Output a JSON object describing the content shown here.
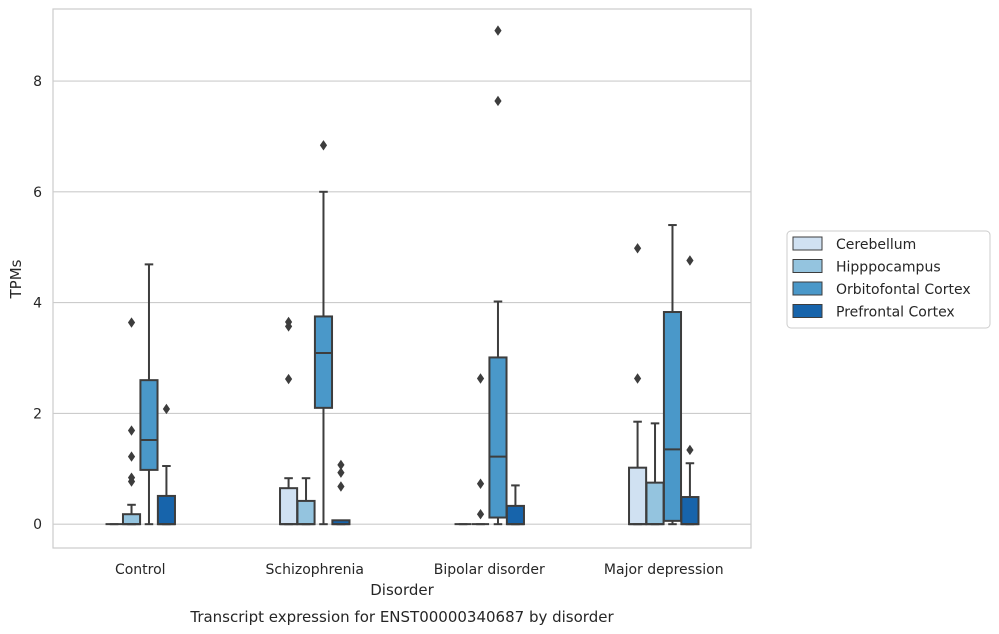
{
  "chart_data": {
    "type": "box",
    "title": "",
    "caption": "Transcript expression for ENST00000340687 by disorder",
    "xlabel": "Disorder",
    "ylabel": "TPMs",
    "ylim": [
      -0.43,
      9.3
    ],
    "yticks": [
      0,
      2,
      4,
      6,
      8
    ],
    "grid": true,
    "legend_position": "right",
    "categories": [
      "Control",
      "Schizophrenia",
      "Bipolar disorder",
      "Major depression"
    ],
    "series": [
      {
        "name": "Cerebellum",
        "color": "#d0e1f2",
        "boxes": [
          {
            "whislo": 0,
            "q1": 0,
            "med": 0,
            "q3": 0,
            "whishi": 0,
            "fliers": []
          },
          {
            "whislo": 0,
            "q1": 0,
            "med": 0,
            "q3": 0.65,
            "whishi": 0.83,
            "fliers": [
              2.62,
              3.57,
              3.65
            ]
          },
          {
            "whislo": 0,
            "q1": 0,
            "med": 0,
            "q3": 0,
            "whishi": 0,
            "fliers": []
          },
          {
            "whislo": 0,
            "q1": 0,
            "med": 0,
            "q3": 1.02,
            "whishi": 1.85,
            "fliers": [
              2.63,
              4.98
            ]
          }
        ]
      },
      {
        "name": "Hipppocampus",
        "color": "#94c4df",
        "boxes": [
          {
            "whislo": 0,
            "q1": 0,
            "med": 0,
            "q3": 0.18,
            "whishi": 0.35,
            "fliers": [
              0.77,
              0.84,
              1.22,
              1.69,
              3.64
            ]
          },
          {
            "whislo": 0,
            "q1": 0,
            "med": 0,
            "q3": 0.42,
            "whishi": 0.83,
            "fliers": []
          },
          {
            "whislo": 0,
            "q1": 0,
            "med": 0,
            "q3": 0,
            "whishi": 0,
            "fliers": [
              0.18,
              0.73,
              2.63
            ]
          },
          {
            "whislo": 0,
            "q1": 0,
            "med": 0,
            "q3": 0.75,
            "whishi": 1.82,
            "fliers": []
          }
        ]
      },
      {
        "name": "Orbitofontal Cortex",
        "color": "#4a98c9",
        "boxes": [
          {
            "whislo": 0,
            "q1": 0.98,
            "med": 1.52,
            "q3": 2.6,
            "whishi": 4.69,
            "fliers": []
          },
          {
            "whislo": 0,
            "q1": 2.1,
            "med": 3.09,
            "q3": 3.75,
            "whishi": 6.0,
            "fliers": [
              6.84
            ]
          },
          {
            "whislo": 0,
            "q1": 0.12,
            "med": 1.22,
            "q3": 3.01,
            "whishi": 4.02,
            "fliers": [
              7.64,
              8.91
            ]
          },
          {
            "whislo": 0,
            "q1": 0.06,
            "med": 1.35,
            "q3": 3.83,
            "whishi": 5.4,
            "fliers": []
          }
        ]
      },
      {
        "name": "Prefrontal Cortex",
        "color": "#1764ab",
        "boxes": [
          {
            "whislo": 0,
            "q1": 0,
            "med": 0,
            "q3": 0.51,
            "whishi": 1.05,
            "fliers": [
              2.08
            ]
          },
          {
            "whislo": 0,
            "q1": 0,
            "med": 0,
            "q3": 0.07,
            "whishi": 0.07,
            "fliers": [
              0.68,
              0.93,
              1.07
            ]
          },
          {
            "whislo": 0,
            "q1": 0,
            "med": 0,
            "q3": 0.33,
            "whishi": 0.7,
            "fliers": []
          },
          {
            "whislo": 0,
            "q1": 0,
            "med": 0,
            "q3": 0.49,
            "whishi": 1.1,
            "fliers": [
              1.34,
              4.76
            ]
          }
        ]
      }
    ]
  },
  "colors": {
    "grid": "#cccccc",
    "frame": "#cccccc",
    "box_edge": "#3d3d3d",
    "text": "#262626"
  }
}
